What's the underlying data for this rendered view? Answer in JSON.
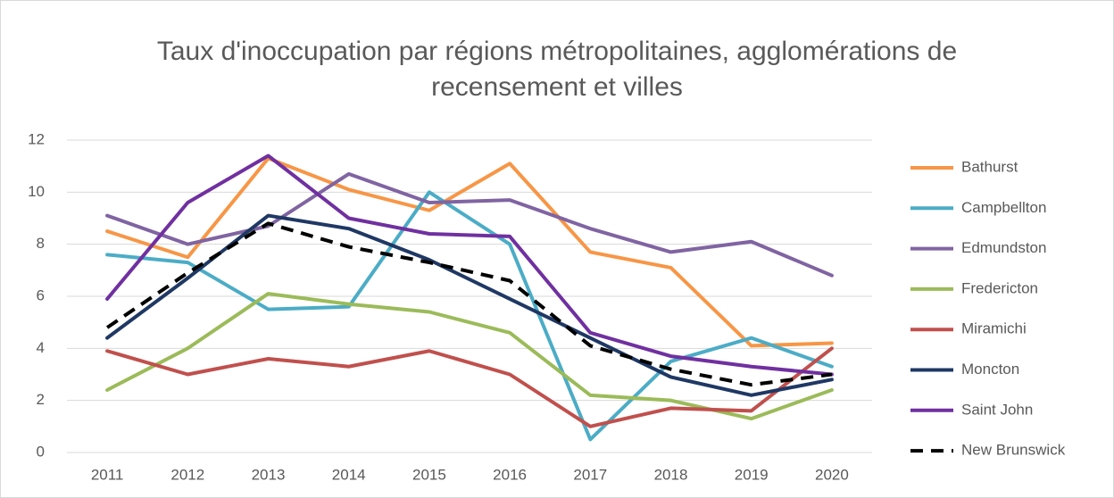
{
  "chart_data": {
    "type": "line",
    "title": "Taux d'inoccupation par régions métropolitaines, agglomérations de recensement et villes",
    "categories": [
      "2011",
      "2012",
      "2013",
      "2014",
      "2015",
      "2016",
      "2017",
      "2018",
      "2019",
      "2020"
    ],
    "ylim": [
      0,
      12
    ],
    "yticks": [
      0,
      2,
      4,
      6,
      8,
      10,
      12
    ],
    "grid": true,
    "legend": "right",
    "series": [
      {
        "name": "Bathurst",
        "color": "#f79646",
        "values": [
          8.5,
          7.5,
          11.3,
          10.1,
          9.3,
          11.1,
          7.7,
          7.1,
          4.1,
          4.2
        ]
      },
      {
        "name": "Campbellton",
        "color": "#4bacc6",
        "values": [
          7.6,
          7.3,
          5.5,
          5.6,
          10.0,
          8.0,
          0.5,
          3.5,
          4.4,
          3.3
        ]
      },
      {
        "name": "Edmundston",
        "color": "#8064a2",
        "values": [
          9.1,
          8.0,
          8.7,
          10.7,
          9.6,
          9.7,
          8.6,
          7.7,
          8.1,
          6.8
        ]
      },
      {
        "name": "Fredericton",
        "color": "#9bbb59",
        "values": [
          2.4,
          4.0,
          6.1,
          5.7,
          5.4,
          4.6,
          2.2,
          2.0,
          1.3,
          2.4
        ]
      },
      {
        "name": "Miramichi",
        "color": "#c0504d",
        "values": [
          3.9,
          3.0,
          3.6,
          3.3,
          3.9,
          3.0,
          1.0,
          1.7,
          1.6,
          4.0
        ]
      },
      {
        "name": "Moncton",
        "color": "#1f3864",
        "values": [
          4.4,
          6.7,
          9.1,
          8.6,
          7.4,
          5.9,
          4.4,
          2.9,
          2.2,
          2.8
        ]
      },
      {
        "name": "Saint John",
        "color": "#7030a0",
        "values": [
          5.9,
          9.6,
          11.4,
          9.0,
          8.4,
          8.3,
          4.6,
          3.7,
          3.3,
          3.0
        ]
      },
      {
        "name": "New Brunswick",
        "color": "#000000",
        "dashed": true,
        "values": [
          4.8,
          6.9,
          8.8,
          7.9,
          7.3,
          6.6,
          4.1,
          3.2,
          2.6,
          3.0
        ]
      }
    ]
  }
}
